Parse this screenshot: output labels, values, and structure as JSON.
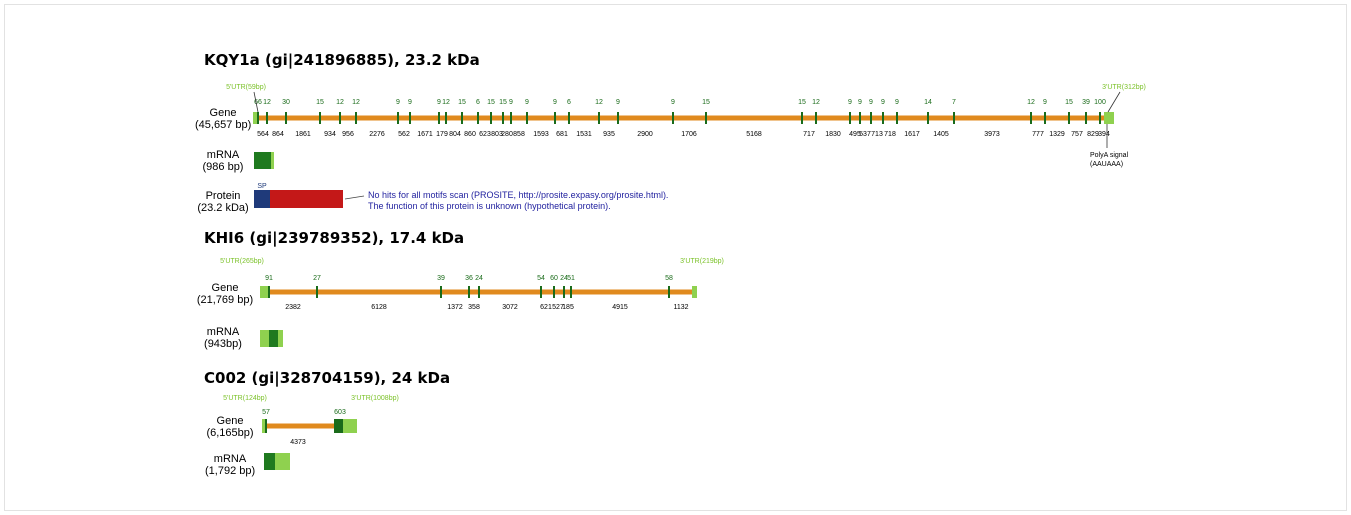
{
  "genes": [
    {
      "title": "KQY1a (gi|241896885), 23.2 kDa",
      "gene_label": "Gene",
      "gene_size": "(45,657 bp)",
      "utr5": "5'UTR(59bp)",
      "utr3": "3'UTR(312bp)",
      "exons": [
        "66",
        "12",
        "30",
        "15",
        "12",
        "12",
        "9",
        "9",
        "9",
        "12",
        "15",
        "6",
        "15",
        "15",
        "9",
        "9",
        "9",
        "6",
        "12",
        "9",
        "9",
        "15",
        "15",
        "12",
        "9",
        "9",
        "9",
        "9",
        "9",
        "14",
        "7",
        "12",
        "9",
        "15",
        "39",
        "100"
      ],
      "introns": [
        "564",
        "864",
        "1861",
        "934",
        "956",
        "2276",
        "562",
        "1671",
        "179",
        "804",
        "860",
        "623",
        "803",
        "280",
        "858",
        "1593",
        "681",
        "1531",
        "935",
        "2900",
        "1706",
        "5168",
        "717",
        "1830",
        "495",
        "537",
        "713",
        "718",
        "1617",
        "1405",
        "3973",
        "777",
        "1329",
        "757",
        "829",
        "394"
      ],
      "mrna_label": "mRNA",
      "mrna_size": "(986 bp)",
      "polya": "PolyA signal",
      "polya_seq": "(AAUAAA)",
      "protein_label": "Protein",
      "protein_size": "(23.2 kDa)",
      "sp": "SP",
      "note1": "No hits for all motifs scan (PROSITE, http://prosite.expasy.org/prosite.html).",
      "note2": "The function of this protein is unknown (hypothetical protein)."
    },
    {
      "title": "KHI6 (gi|239789352), 17.4 kDa",
      "gene_label": "Gene",
      "gene_size": "(21,769 bp)",
      "utr5": "5'UTR(265bp)",
      "utr3": "3'UTR(219bp)",
      "exons": [
        "91",
        "27",
        "39",
        "36",
        "24",
        "54",
        "60",
        "24",
        "51",
        "58"
      ],
      "introns": [
        "2382",
        "6128",
        "1372",
        "358",
        "3072",
        "621",
        "527",
        "185",
        "4915",
        "1132"
      ],
      "mrna_label": "mRNA",
      "mrna_size": "(943bp)"
    },
    {
      "title": "C002 (gi|328704159), 24 kDa",
      "gene_label": "Gene",
      "gene_size": "(6,165bp)",
      "utr5": "5'UTR(124bp)",
      "utr3": "3'UTR(1008bp)",
      "exons": [
        "57",
        "603"
      ],
      "introns": [
        "4373"
      ],
      "mrna_label": "mRNA",
      "mrna_size": "(1,792 bp)"
    }
  ],
  "colors": {
    "intron": "#e08a1e",
    "exon": "#1a6b1a",
    "utr": "#8fd14f",
    "utr_text": "#7cc22a",
    "cds": "#1f7a1f",
    "signal_peptide": "#1f3a7a",
    "protein": "#c41818",
    "note": "#1f1f9e"
  }
}
